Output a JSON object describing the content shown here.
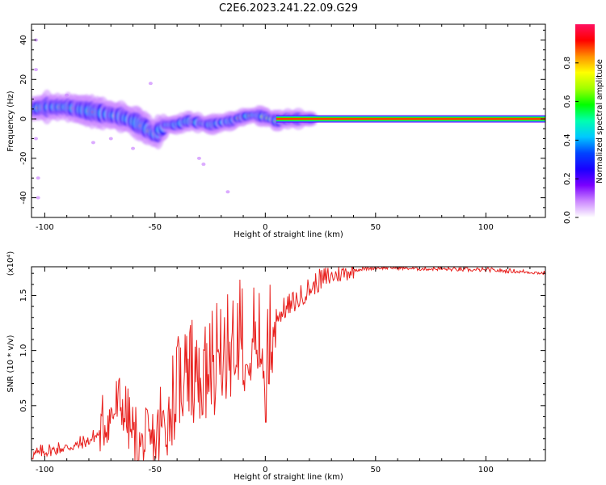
{
  "title": "C2E6.2023.241.22.09.G29",
  "colors": {
    "snr_line": "#e8211e",
    "colormap": [
      "#ffffff",
      "#cc88ff",
      "#7a00ff",
      "#1a00ff",
      "#0044ff",
      "#00c8ff",
      "#00ffb0",
      "#00ff00",
      "#a0ff00",
      "#ffff00",
      "#ff9000",
      "#ff0000",
      "#ff1060"
    ]
  },
  "chart_data": [
    {
      "type": "heatmap",
      "title": "C2E6.2023.241.22.09.G29",
      "xlabel": "Height of straight line (km)",
      "ylabel": "Frequency (Hz)",
      "xlim": [
        -106,
        127
      ],
      "ylim": [
        -50,
        48
      ],
      "xticks": [
        -100,
        -50,
        0,
        50,
        100
      ],
      "yticks": [
        -40,
        -20,
        0,
        20,
        40
      ],
      "grid": false,
      "colorbar": {
        "label": "Normalized spectral amplitude",
        "range": [
          0,
          1
        ],
        "ticks": [
          "0.0",
          "0.2",
          "0.4",
          "0.6",
          "0.8"
        ]
      },
      "ridge": {
        "x": [
          -106,
          -100,
          -95,
          -90,
          -85,
          -80,
          -75,
          -70,
          -65,
          -60,
          -55,
          -50,
          -45,
          -40,
          -35,
          -30,
          -25,
          -20,
          -15,
          -10,
          -5,
          0,
          5,
          10,
          15,
          20,
          127
        ],
        "y": [
          5,
          6,
          6,
          6,
          5,
          4,
          3,
          2,
          1,
          -1,
          -4,
          -8,
          -3,
          -3,
          -1,
          -2,
          -3,
          -2,
          -1,
          1,
          2,
          1,
          -1,
          0,
          0,
          0,
          0
        ]
      }
    },
    {
      "type": "line",
      "xlabel": "Height of straight line (km)",
      "ylabel": "SNR (10 * v/v)",
      "yscale_label": "(x10⁴)",
      "xlim": [
        -106,
        127
      ],
      "ylim": [
        0,
        1.76
      ],
      "xticks": [
        -100,
        -50,
        0,
        50,
        100
      ],
      "yticks": [
        "0.5",
        "1.0",
        "1.5"
      ],
      "grid": false,
      "series": [
        {
          "x": [
            -106,
            -100,
            -95,
            -90,
            -85,
            -80,
            -75,
            -72,
            -68,
            -65,
            -62,
            -58,
            -55,
            -50,
            -45,
            -42,
            -38,
            -35,
            -32,
            -28,
            -25,
            -22,
            -18,
            -15,
            -12,
            -10,
            -8,
            -5,
            -2,
            0,
            2,
            5,
            10,
            15,
            20,
            25,
            30,
            35,
            40,
            45,
            50,
            60,
            70,
            80,
            90,
            100,
            110,
            120,
            127
          ],
          "y": [
            0.05,
            0.08,
            0.1,
            0.12,
            0.14,
            0.18,
            0.25,
            0.35,
            0.45,
            0.5,
            0.3,
            0.15,
            0.12,
            0.18,
            0.35,
            0.5,
            0.65,
            0.72,
            0.6,
            0.55,
            0.7,
            0.8,
            0.85,
            0.95,
            1.05,
            0.9,
            1.1,
            1.05,
            1.0,
            0.85,
            0.95,
            1.3,
            1.38,
            1.45,
            1.55,
            1.62,
            1.67,
            1.7,
            1.73,
            1.74,
            1.75,
            1.75,
            1.74,
            1.74,
            1.73,
            1.73,
            1.72,
            1.71,
            1.7
          ]
        }
      ]
    }
  ]
}
